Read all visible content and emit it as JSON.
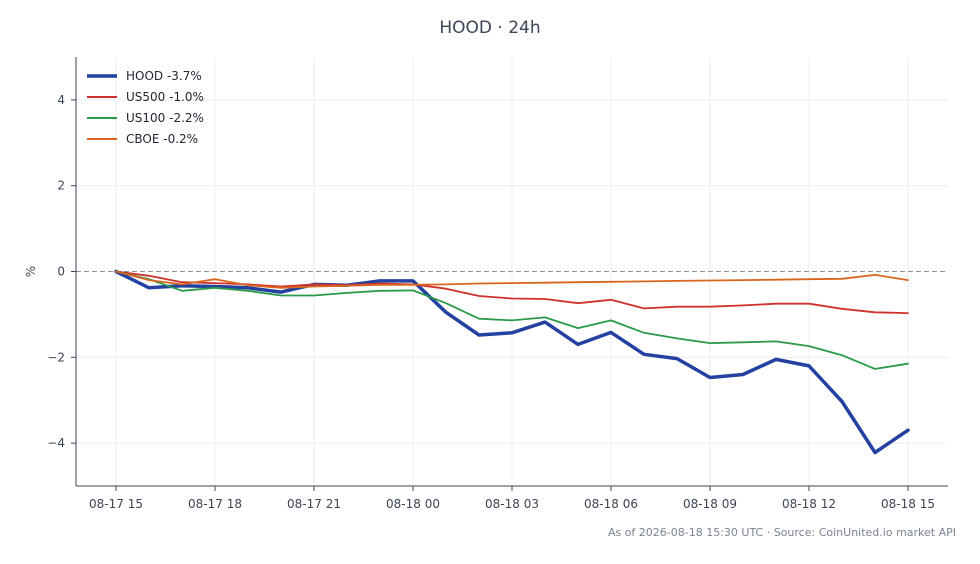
{
  "title": "HOOD · 24h",
  "footer": "As of 2026-08-18 15:30 UTC · Source: CoinUnited.io market API",
  "chart_data": {
    "type": "line",
    "title": "HOOD · 24h",
    "xlabel": "",
    "ylabel": "%",
    "x": [
      "08-17 15",
      "08-17 16",
      "08-17 17",
      "08-17 18",
      "08-17 19",
      "08-17 20",
      "08-17 21",
      "08-17 22",
      "08-17 23",
      "08-18 00",
      "08-18 01",
      "08-18 02",
      "08-18 03",
      "08-18 04",
      "08-18 05",
      "08-18 06",
      "08-18 07",
      "08-18 08",
      "08-18 09",
      "08-18 10",
      "08-18 11",
      "08-18 12",
      "08-18 13",
      "08-18 14",
      "08-18 15"
    ],
    "xticks": [
      "08-17 15",
      "08-17 18",
      "08-17 21",
      "08-18 00",
      "08-18 03",
      "08-18 06",
      "08-18 09",
      "08-18 12",
      "08-18 15"
    ],
    "yticks": [
      4,
      2,
      0,
      -2,
      -4
    ],
    "ylim": [
      -5,
      5
    ],
    "grid": true,
    "zero_line": true,
    "legend_position": "top-left",
    "series": [
      {
        "name": "HOOD -3.7%",
        "color": "#2341a0",
        "width": 3.5,
        "values": [
          0.0,
          -0.38,
          -0.33,
          -0.35,
          -0.38,
          -0.48,
          -0.3,
          -0.32,
          -0.22,
          -0.22,
          -0.95,
          -1.48,
          -1.43,
          -1.18,
          -1.7,
          -1.42,
          -1.93,
          -2.03,
          -2.47,
          -2.4,
          -2.05,
          -2.2,
          -3.03,
          -4.22,
          -3.7
        ]
      },
      {
        "name": "US500 -1.0%",
        "color": "#d0312d",
        "width": 1.8,
        "values": [
          0.0,
          -0.1,
          -0.25,
          -0.27,
          -0.3,
          -0.35,
          -0.3,
          -0.32,
          -0.28,
          -0.3,
          -0.4,
          -0.57,
          -0.63,
          -0.64,
          -0.74,
          -0.66,
          -0.86,
          -0.82,
          -0.82,
          -0.79,
          -0.75,
          -0.75,
          -0.87,
          -0.95,
          -0.97
        ]
      },
      {
        "name": "US100 -2.2%",
        "color": "#2a9a48",
        "width": 1.8,
        "values": [
          0.0,
          -0.18,
          -0.45,
          -0.38,
          -0.45,
          -0.56,
          -0.56,
          -0.5,
          -0.45,
          -0.44,
          -0.74,
          -1.1,
          -1.14,
          -1.07,
          -1.32,
          -1.14,
          -1.43,
          -1.56,
          -1.67,
          -1.65,
          -1.63,
          -1.74,
          -1.95,
          -2.27,
          -2.15
        ]
      },
      {
        "name": "CBOE -0.2%",
        "color": "#d9661f",
        "width": 1.8,
        "values": [
          0.0,
          -0.2,
          -0.3,
          -0.18,
          -0.32,
          -0.38,
          -0.35,
          -0.33,
          -0.31,
          -0.31,
          -0.3,
          -0.28,
          -0.27,
          -0.26,
          -0.25,
          -0.24,
          -0.23,
          -0.22,
          -0.21,
          -0.2,
          -0.19,
          -0.18,
          -0.17,
          -0.08,
          -0.2
        ]
      }
    ]
  }
}
